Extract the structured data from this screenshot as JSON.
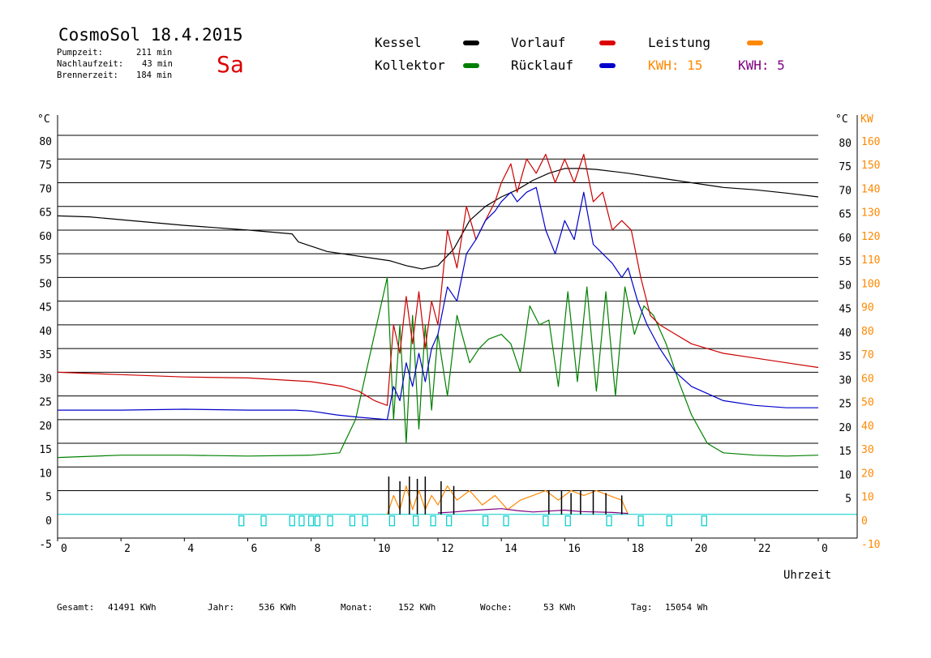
{
  "header": {
    "title": "CosmoSol 18.4.2015",
    "day": "Sa",
    "pump_label": "Pumpzeit:",
    "pump_value": "211 min",
    "after_label": "Nachlaufzeit:",
    "after_value": "43 min",
    "burner_label": "Brennerzeit:",
    "burner_value": "184 min"
  },
  "legend": {
    "kessel": "Kessel",
    "kollektor": "Kollektor",
    "vorlauf": "Vorlauf",
    "ruecklauf": "Rücklauf",
    "leistung": "Leistung",
    "kwh1": "KWH: 15",
    "kwh2": "KWH: 5"
  },
  "colors": {
    "kessel": "#000000",
    "kollektor": "#008000",
    "vorlauf": "#cc0000",
    "ruecklauf": "#0000cc",
    "leistung": "#ff8800",
    "kwh2": "#800080",
    "pump": "#00cccc",
    "grid": "#000000"
  },
  "footer": {
    "gesamt_label": "Gesamt:",
    "gesamt_value": "41491 KWh",
    "jahr_label": "Jahr:",
    "jahr_value": "536 KWh",
    "monat_label": "Monat:",
    "monat_value": "152 KWh",
    "woche_label": "Woche:",
    "woche_value": "53 KWh",
    "tag_label": "Tag:",
    "tag_value": "15054 Wh"
  },
  "chart_data": {
    "type": "line",
    "xlabel": "Uhrzeit",
    "ylabel_left": "°C",
    "ylabel_right": "°C",
    "ylabel_right2": "KW",
    "xlim": [
      0,
      24
    ],
    "ylim": [
      -5,
      80
    ],
    "grid": true,
    "x_ticks": [
      "0",
      "2",
      "4",
      "6",
      "8",
      "10",
      "12",
      "14",
      "16",
      "18",
      "20",
      "22",
      "0"
    ],
    "y_ticks_left": [
      "80",
      "75",
      "70",
      "65",
      "60",
      "55",
      "50",
      "45",
      "40",
      "35",
      "30",
      "25",
      "20",
      "15",
      "10",
      "5",
      "0",
      "-5"
    ],
    "y_ticks_right": [
      "80",
      "75",
      "70",
      "65",
      "60",
      "55",
      "50",
      "45",
      "40",
      "35",
      "30",
      "25",
      "20",
      "15",
      "10",
      "5"
    ],
    "y_ticks_kw": [
      "160",
      "150",
      "140",
      "130",
      "120",
      "110",
      "100",
      "90",
      "80",
      "70",
      "60",
      "50",
      "40",
      "30",
      "20",
      "10",
      "0",
      "-10"
    ],
    "series": [
      {
        "name": "Kessel",
        "color": "#000000",
        "x": [
          0,
          1,
          2,
          4,
          6,
          7.4,
          7.6,
          8.5,
          10,
          10.5,
          11,
          11.5,
          12,
          12.5,
          13,
          13.5,
          14,
          14.5,
          15,
          15.5,
          16,
          16.5,
          17,
          18,
          19,
          20,
          21,
          22,
          23,
          24
        ],
        "y": [
          63,
          62.8,
          62.2,
          61,
          60,
          59.2,
          57.5,
          55.5,
          54,
          53.5,
          52.5,
          51.8,
          52.5,
          56,
          62,
          65,
          67,
          68.5,
          70.5,
          72,
          73,
          73,
          72.8,
          72,
          71,
          70,
          69,
          68.5,
          67.8,
          67
        ]
      },
      {
        "name": "Kollektor",
        "color": "#008000",
        "x": [
          0,
          2,
          4,
          6,
          8,
          8.9,
          9.4,
          10,
          10.4,
          10.6,
          10.8,
          11,
          11.2,
          11.4,
          11.6,
          11.8,
          12,
          12.3,
          12.6,
          13,
          13.3,
          13.6,
          14,
          14.3,
          14.6,
          14.9,
          15.2,
          15.5,
          15.8,
          16.1,
          16.4,
          16.7,
          17,
          17.3,
          17.6,
          17.9,
          18.2,
          18.5,
          18.8,
          19.2,
          19.6,
          20,
          20.5,
          21,
          22,
          23,
          24
        ],
        "y": [
          12,
          12.5,
          12.5,
          12.3,
          12.5,
          13,
          20,
          38,
          50,
          20,
          40,
          15,
          42,
          18,
          40,
          22,
          38,
          25,
          42,
          32,
          35,
          37,
          38,
          36,
          30,
          44,
          40,
          41,
          27,
          47,
          28,
          48,
          26,
          47,
          25,
          48,
          38,
          44,
          42,
          36,
          28,
          21,
          15,
          13,
          12.5,
          12.3,
          12.5
        ]
      },
      {
        "name": "Vorlauf",
        "color": "#cc0000",
        "x": [
          0,
          2,
          4,
          6,
          8,
          9,
          9.5,
          10,
          10.4,
          10.6,
          10.8,
          11,
          11.2,
          11.4,
          11.6,
          11.8,
          12,
          12.3,
          12.6,
          12.9,
          13.2,
          13.5,
          13.8,
          14,
          14.3,
          14.5,
          14.8,
          15.1,
          15.4,
          15.7,
          16,
          16.3,
          16.6,
          16.9,
          17.2,
          17.5,
          17.8,
          18.1,
          18.4,
          18.7,
          19,
          19.5,
          20,
          21,
          22,
          23,
          24
        ],
        "y": [
          30,
          29.5,
          29,
          28.8,
          28,
          27,
          26,
          24,
          23,
          40,
          34,
          46,
          36,
          47,
          35,
          45,
          40,
          60,
          52,
          65,
          58,
          62,
          66,
          70,
          74,
          68,
          75,
          72,
          76,
          70,
          75,
          70,
          76,
          66,
          68,
          60,
          62,
          60,
          50,
          42,
          40,
          38,
          36,
          34,
          33,
          32,
          31
        ]
      },
      {
        "name": "Rücklauf",
        "color": "#0000cc",
        "x": [
          0,
          2,
          4,
          6,
          7.5,
          8,
          8.8,
          9.5,
          10.4,
          10.6,
          10.8,
          11,
          11.2,
          11.4,
          11.6,
          11.8,
          12,
          12.3,
          12.6,
          12.9,
          13.2,
          13.5,
          13.8,
          14,
          14.3,
          14.5,
          14.8,
          15.1,
          15.4,
          15.7,
          16,
          16.3,
          16.6,
          16.9,
          17.2,
          17.5,
          17.8,
          18,
          18.3,
          18.6,
          19,
          19.5,
          20,
          21,
          22,
          23,
          24
        ],
        "y": [
          22,
          22,
          22.2,
          22,
          22,
          21.8,
          21,
          20.5,
          20,
          27,
          24,
          32,
          27,
          34,
          28,
          35,
          38,
          48,
          45,
          55,
          58,
          62,
          64,
          66,
          68,
          66,
          68,
          69,
          60,
          55,
          62,
          58,
          68,
          57,
          55,
          53,
          50,
          52,
          45,
          40,
          35,
          30,
          27,
          24,
          23,
          22.5,
          22.5
        ]
      },
      {
        "name": "Leistung",
        "color": "#ff8800",
        "x": [
          10.4,
          10.6,
          10.8,
          11,
          11.2,
          11.4,
          11.6,
          11.8,
          12,
          12.3,
          12.6,
          13,
          13.4,
          13.8,
          14.2,
          14.6,
          15,
          15.4,
          15.8,
          16.2,
          16.6,
          17,
          17.4,
          17.8,
          18
        ],
        "y": [
          0,
          4,
          1,
          6,
          1,
          5,
          1,
          4,
          2,
          6,
          3,
          5,
          2,
          4,
          1,
          3,
          4,
          5,
          3,
          5,
          4,
          5,
          4,
          3,
          0
        ]
      },
      {
        "name": "KWH: 5",
        "color": "#800080",
        "x": [
          12,
          12.5,
          13,
          13.5,
          14,
          14.5,
          15,
          15.5,
          16,
          16.5,
          17,
          17.5,
          18
        ],
        "y": [
          0.3,
          0.5,
          0.8,
          1,
          1.2,
          0.8,
          0.5,
          0.7,
          0.9,
          0.6,
          0.5,
          0.4,
          0.2
        ]
      }
    ],
    "burner_spikes": {
      "name": "Kessel",
      "color": "#000000",
      "x": [
        10.45,
        10.8,
        11.1,
        11.35,
        11.6,
        12.1,
        12.5,
        15.5,
        15.9,
        16.2,
        16.5,
        16.9,
        17.3,
        17.8
      ],
      "y": [
        8,
        7,
        8,
        7.5,
        8,
        7,
        6,
        5,
        5,
        4.5,
        5,
        5,
        4.5,
        4
      ]
    },
    "pump_markers": {
      "name": "Pumpe",
      "color": "#00cccc",
      "x": [
        5.8,
        6.5,
        7.4,
        7.7,
        8,
        8.2,
        8.6,
        9.3,
        9.7,
        10.55,
        11.3,
        11.85,
        12.35,
        13.5,
        14.15,
        15.4,
        16.1,
        17.4,
        18.4,
        19.3,
        20.4
      ]
    }
  }
}
